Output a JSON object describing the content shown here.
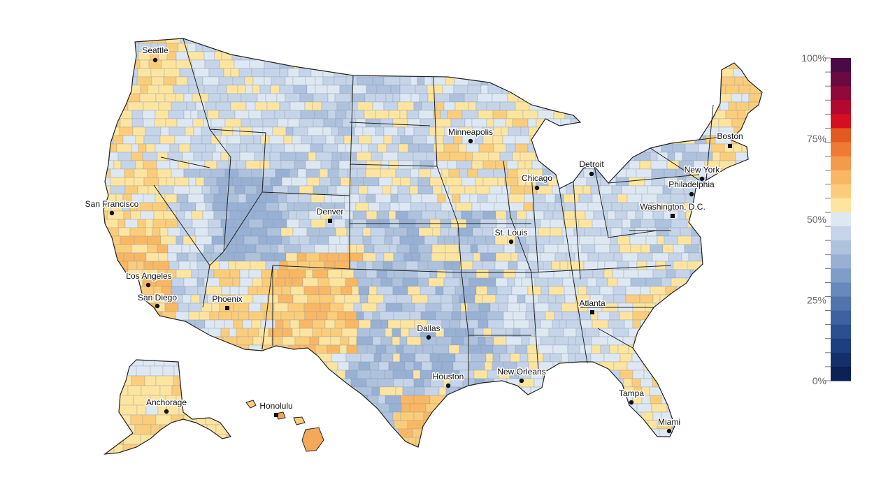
{
  "map": {
    "cities": [
      {
        "name": "Seattle"
      },
      {
        "name": "San Francisco"
      },
      {
        "name": "Los Angeles"
      },
      {
        "name": "San Diego"
      },
      {
        "name": "Phoenix"
      },
      {
        "name": "Denver"
      },
      {
        "name": "Minneapolis"
      },
      {
        "name": "Chicago"
      },
      {
        "name": "Detroit"
      },
      {
        "name": "St. Louis"
      },
      {
        "name": "Dallas"
      },
      {
        "name": "Houston"
      },
      {
        "name": "New Orleans"
      },
      {
        "name": "Atlanta"
      },
      {
        "name": "Tampa"
      },
      {
        "name": "Miami"
      },
      {
        "name": "Washington, D.C."
      },
      {
        "name": "Philadelphia"
      },
      {
        "name": "New York"
      },
      {
        "name": "Boston"
      },
      {
        "name": "Anchorage"
      },
      {
        "name": "Honolulu"
      }
    ],
    "colors": {
      "state_border": "#222222",
      "county_border": "#9aa6b4"
    }
  },
  "legend": {
    "ticks": [
      "100%",
      "75%",
      "50%",
      "25%",
      "0%"
    ],
    "tick_values": [
      100,
      75,
      50,
      25,
      0
    ],
    "colors": [
      "#4a0a45",
      "#6b0a40",
      "#8f0a3a",
      "#b3082f",
      "#d40f22",
      "#e35a20",
      "#ef7a33",
      "#f49a4b",
      "#f9b764",
      "#fbcd7a",
      "#fde5a0",
      "#dde8f3",
      "#c5d4e8",
      "#aec2de",
      "#98b0d3",
      "#7f9dc8",
      "#6889bb",
      "#5274ad",
      "#3e619f",
      "#2c4f8f",
      "#1d3f7f",
      "#142f6c",
      "#0c2158"
    ]
  }
}
